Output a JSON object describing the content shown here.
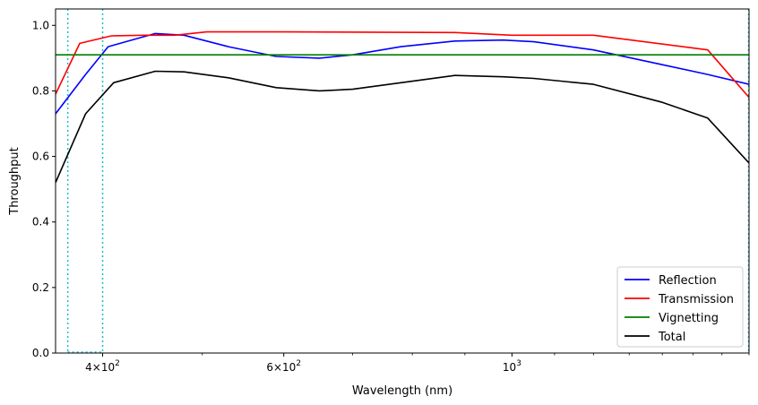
{
  "chart_data": {
    "type": "line",
    "xlabel": "Wavelength (nm)",
    "ylabel": "Throughput",
    "xscale": "log",
    "xlim": [
      360,
      1700
    ],
    "ylim": [
      0,
      1.05
    ],
    "grid": false,
    "legend_position": "bottom-right",
    "x_ticks": [
      {
        "value": 400,
        "label_base": "4",
        "label_sup": "2",
        "label_suffix": "×10"
      },
      {
        "value": 600,
        "label_base": "6",
        "label_sup": "2",
        "label_suffix": "×10"
      },
      {
        "value": 1000,
        "label_base": "10",
        "label_sup": "3",
        "label_suffix": ""
      }
    ],
    "x_minor_ticks": [
      500,
      700,
      800,
      900,
      1100,
      1200,
      1300,
      1400,
      1500,
      1600,
      1700
    ],
    "y_ticks": [
      "0.0",
      "0.2",
      "0.4",
      "0.6",
      "0.8",
      "1.0"
    ],
    "y_tick_values": [
      0,
      0.2,
      0.4,
      0.6,
      0.8,
      1.0
    ],
    "vlines": [
      {
        "x": 370,
        "color": "#17becf",
        "style": "dotted"
      },
      {
        "x": 400,
        "color": "#17becf",
        "style": "dotted"
      },
      {
        "x": 1700,
        "color": "#17becf",
        "style": "dotted"
      }
    ],
    "series": [
      {
        "name": "Reflection",
        "color": "#0000ff",
        "x": [
          360,
          385,
          405,
          450,
          480,
          530,
          590,
          650,
          700,
          780,
          880,
          980,
          1050,
          1200,
          1400,
          1550,
          1700
        ],
        "y": [
          0.73,
          0.85,
          0.935,
          0.975,
          0.97,
          0.935,
          0.905,
          0.9,
          0.91,
          0.935,
          0.952,
          0.955,
          0.95,
          0.925,
          0.88,
          0.85,
          0.82
        ]
      },
      {
        "name": "Transmission",
        "color": "#ff0000",
        "x": [
          360,
          380,
          408,
          440,
          470,
          505,
          600,
          880,
          1000,
          1200,
          1550,
          1700
        ],
        "y": [
          0.79,
          0.945,
          0.968,
          0.97,
          0.97,
          0.98,
          0.98,
          0.978,
          0.97,
          0.97,
          0.925,
          0.78
        ]
      },
      {
        "name": "Vignetting",
        "color": "#008000",
        "x": [
          360,
          1700
        ],
        "y": [
          0.91,
          0.91
        ]
      },
      {
        "name": "Total",
        "color": "#000000",
        "x": [
          360,
          385,
          410,
          450,
          480,
          530,
          590,
          650,
          700,
          780,
          880,
          980,
          1050,
          1200,
          1400,
          1550,
          1700
        ],
        "y": [
          0.52,
          0.73,
          0.825,
          0.86,
          0.858,
          0.84,
          0.81,
          0.8,
          0.805,
          0.825,
          0.847,
          0.843,
          0.838,
          0.82,
          0.765,
          0.717,
          0.58
        ]
      }
    ]
  }
}
